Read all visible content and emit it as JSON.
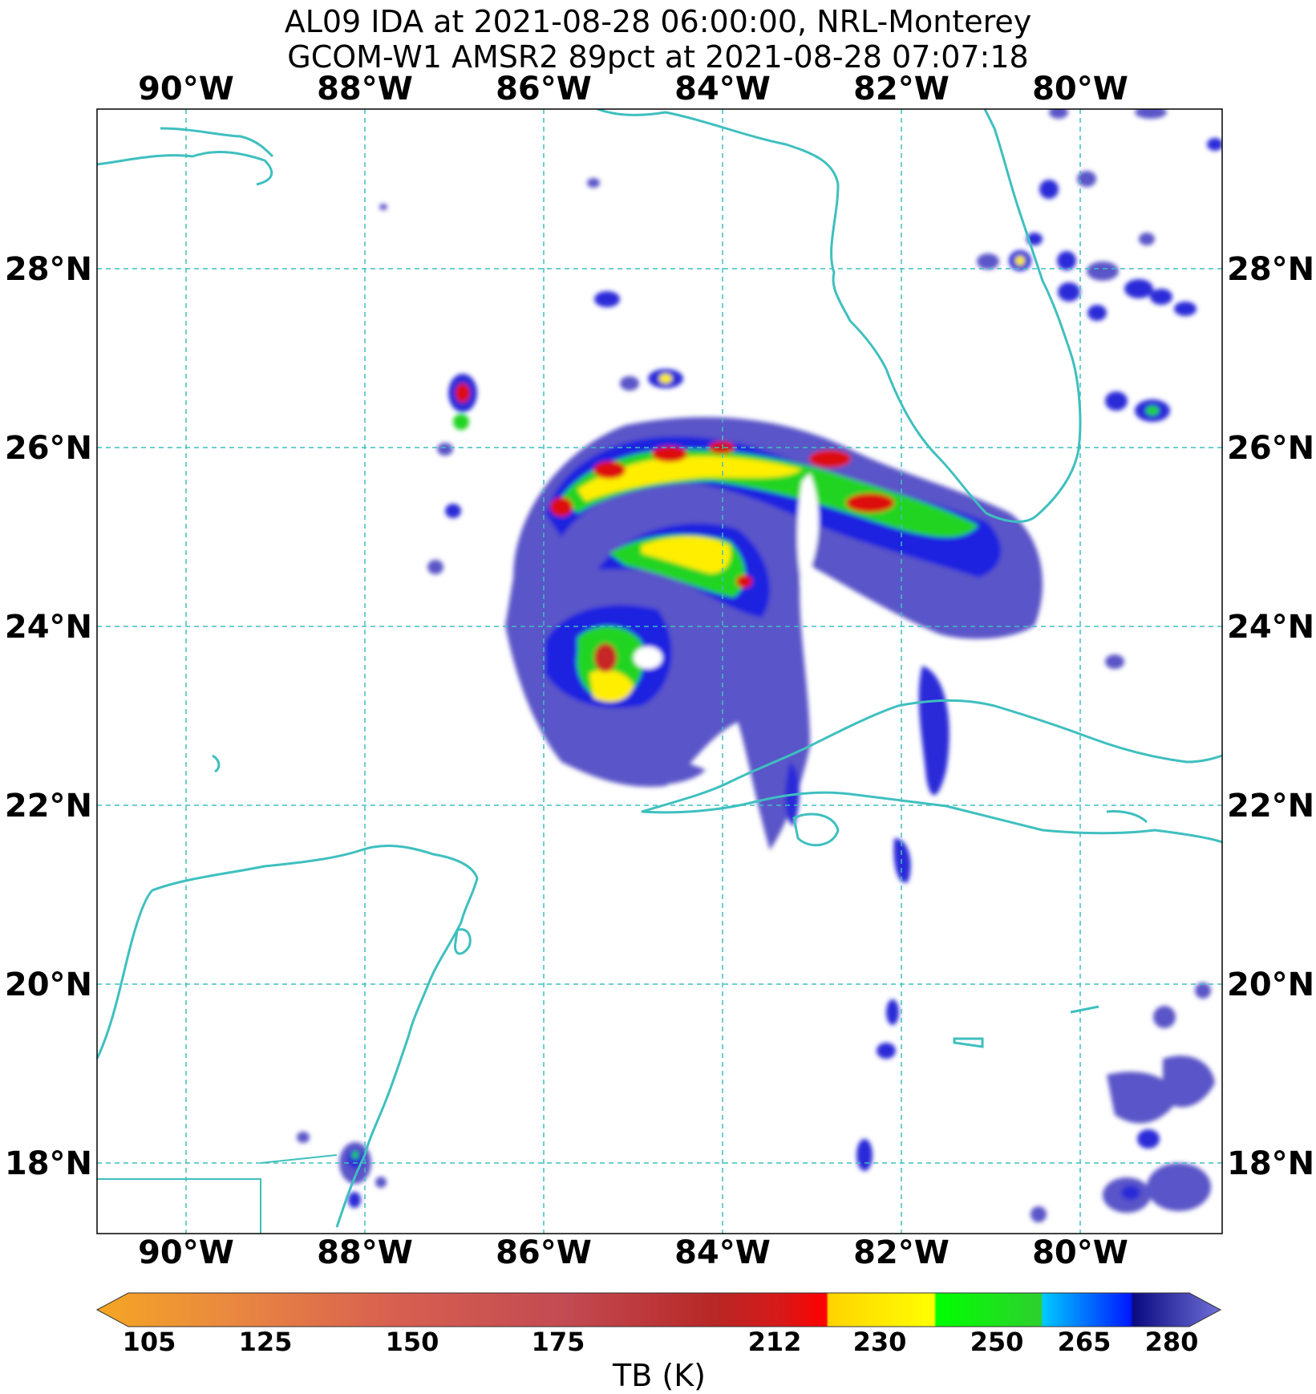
{
  "title": {
    "line1": "AL09 IDA at 2021-08-28 06:00:00, NRL-Monterey",
    "line2": "GCOM-W1 AMSR2 89pct at 2021-08-28 07:07:18"
  },
  "axes": {
    "lon_ticks": [
      "90°W",
      "88°W",
      "86°W",
      "84°W",
      "82°W",
      "80°W"
    ],
    "lat_ticks": [
      "28°N",
      "26°N",
      "24°N",
      "22°N",
      "20°N",
      "18°N"
    ],
    "lon_values": [
      -90,
      -88,
      -86,
      -84,
      -82,
      -80
    ],
    "lat_values": [
      28,
      26,
      24,
      22,
      20,
      18
    ],
    "lon_range": [
      -91.0,
      -78.4
    ],
    "lat_range": [
      17.2,
      29.8
    ],
    "gridlines": "dashed",
    "grid_color": "#3fbfbf"
  },
  "colorbar": {
    "label": "TB (K)",
    "ticks": [
      "105",
      "125",
      "150",
      "175",
      "212",
      "230",
      "250",
      "265",
      "280"
    ],
    "tick_values": [
      105,
      125,
      150,
      175,
      212,
      230,
      250,
      265,
      280
    ],
    "range": [
      105,
      280
    ],
    "extend": "both"
  },
  "colors": {
    "coastline": "#3fbfbf",
    "grid": "#3fbfbf"
  }
}
